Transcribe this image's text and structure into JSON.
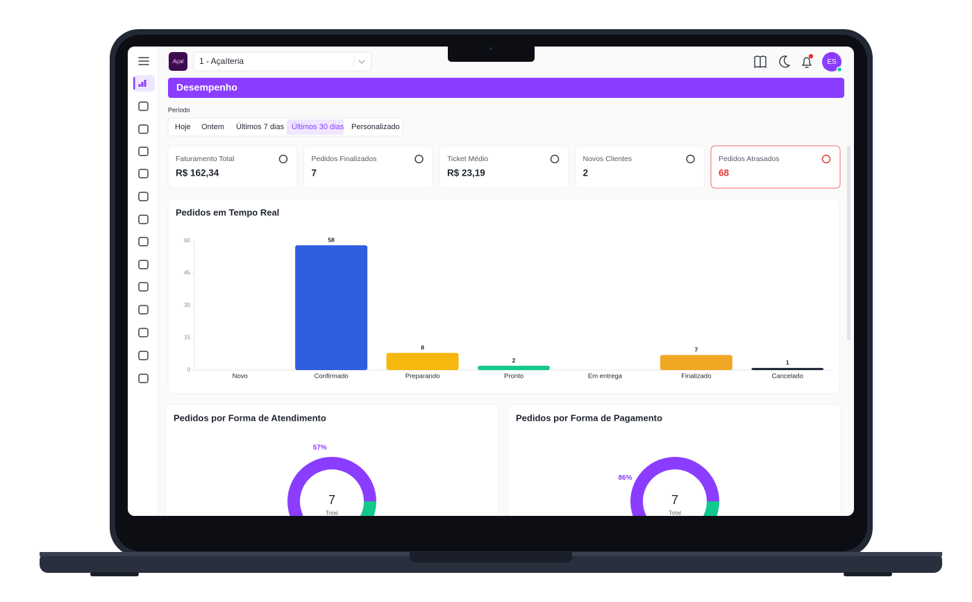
{
  "header": {
    "store_selector": "1 - Açaíteria",
    "user_initials": "ES"
  },
  "page_title": "Desempenho",
  "period": {
    "label": "Período",
    "options": [
      "Hoje",
      "Ontem",
      "Últimos 7 dias",
      "Últimos 30 dias",
      "Personalizado"
    ],
    "selected": 3
  },
  "cards": [
    {
      "label": "Faturamento Total",
      "value": "R$ 162,34"
    },
    {
      "label": "Pedidos Finalizados",
      "value": 7
    },
    {
      "label": "Ticket Médio",
      "value": "R$ 23,19"
    },
    {
      "label": "Novos Clientes",
      "value": 2
    },
    {
      "label": "Pedidos Atrasados",
      "value": 68
    }
  ],
  "chart_data": [
    {
      "type": "bar",
      "title": "Pedidos em Tempo Real",
      "categories": [
        "Novo",
        "Confirmado",
        "Preparando",
        "Pronto",
        "Em entrega",
        "Finalizado",
        "Cancelado"
      ],
      "values": [
        0,
        58,
        8,
        2,
        0,
        7,
        1
      ],
      "colors": [
        "#2f5fe0",
        "#2f5fe0",
        "#f6b70f",
        "#14c98f",
        "#f0a824",
        "#f0a824",
        "#1f2937"
      ],
      "ylim": [
        0,
        60
      ],
      "yticks": [
        0,
        15,
        30,
        45,
        60
      ]
    },
    {
      "type": "donut",
      "title": "Pedidos por Forma de Atendimento",
      "values": [
        57,
        43
      ],
      "value_labels": [
        "57%",
        null
      ],
      "colors": [
        "#8b3dff",
        "#12c88e"
      ],
      "center_value": 7,
      "center_label": "Total"
    },
    {
      "type": "donut",
      "title": "Pedidos por Forma de Pagamento",
      "values": [
        86,
        14
      ],
      "value_labels": [
        "86%",
        null
      ],
      "colors": [
        "#8b3dff",
        "#12c88e"
      ],
      "center_value": 7,
      "center_label": "Total"
    }
  ]
}
